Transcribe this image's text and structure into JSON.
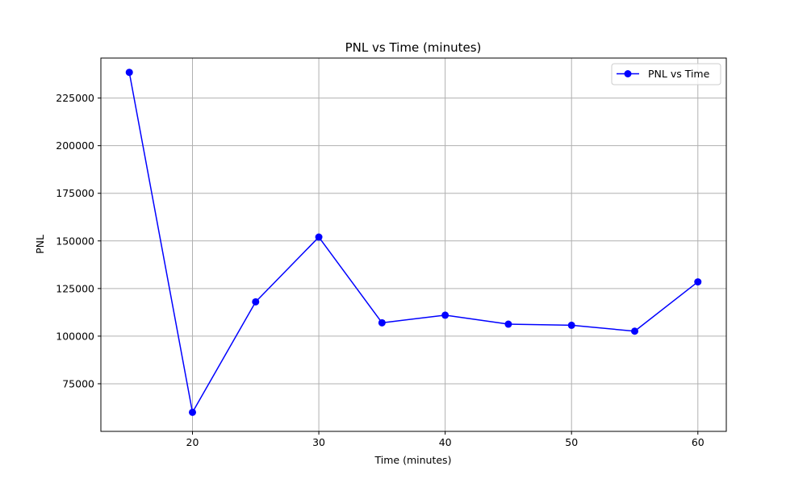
{
  "chart_data": {
    "type": "line",
    "title": "PNL vs Time (minutes)",
    "xlabel": "Time (minutes)",
    "ylabel": "PNL",
    "xlim": [
      12.75,
      62.25
    ],
    "ylim": [
      50000,
      246000
    ],
    "xticks": [
      20,
      30,
      40,
      50,
      60
    ],
    "yticks": [
      75000,
      100000,
      125000,
      150000,
      175000,
      200000,
      225000
    ],
    "grid": true,
    "legend_position": "top-right",
    "series": [
      {
        "name": "PNL vs Time",
        "color": "#0000ff",
        "marker": "circle",
        "x": [
          15,
          20,
          25,
          30,
          35,
          40,
          45,
          50,
          55,
          60
        ],
        "y": [
          238500,
          60000,
          118000,
          152000,
          107000,
          111000,
          106300,
          105700,
          102600,
          128500
        ]
      }
    ]
  }
}
